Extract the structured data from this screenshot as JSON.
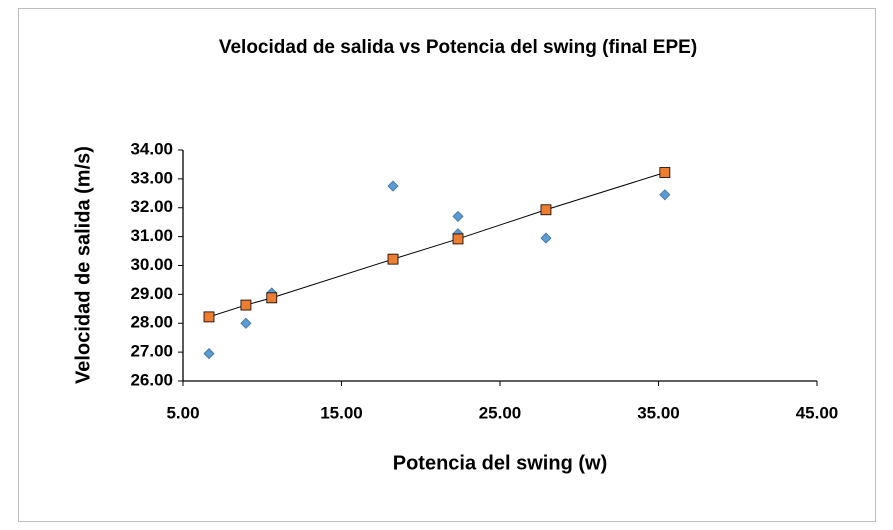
{
  "chart_data": {
    "type": "scatter",
    "title": "Velocidad de salida vs Potencia del swing (final EPE)",
    "x_label": "Potencia del swing (w)",
    "y_label": "Velocidad de salida (m/s)",
    "x": [
      6.64,
      8.97,
      10.6,
      18.25,
      22.35,
      22.35,
      27.9,
      35.4
    ],
    "series": [
      {
        "color": "#5b9bd5",
        "marker": "diamond",
        "x": [
          6.64,
          8.97,
          10.6,
          18.25,
          22.35,
          22.35,
          27.9,
          35.4
        ],
        "values": [
          26.95,
          28.0,
          29.05,
          32.75,
          31.7,
          31.1,
          30.95,
          32.45
        ]
      },
      {
        "color": "#ed7d31",
        "marker": "square",
        "trendline": true,
        "x": [
          6.64,
          8.97,
          10.6,
          18.25,
          22.35,
          27.9,
          35.4
        ],
        "values": [
          28.22,
          28.63,
          28.88,
          30.22,
          30.92,
          31.93,
          33.22
        ]
      }
    ],
    "xlim": [
      5,
      45
    ],
    "xticks": [
      {
        "value": 5,
        "label": "5.00"
      },
      {
        "value": 15,
        "label": "15.00"
      },
      {
        "value": 25,
        "label": "25.00"
      },
      {
        "value": 35,
        "label": "35.00"
      },
      {
        "value": 45,
        "label": "45.00"
      }
    ],
    "ylim": [
      26,
      34
    ],
    "yticks": [
      {
        "value": 26,
        "label": "26.00"
      },
      {
        "value": 27,
        "label": "27.00"
      },
      {
        "value": 28,
        "label": "28.00"
      },
      {
        "value": 29,
        "label": "29.00"
      },
      {
        "value": 30,
        "label": "30.00"
      },
      {
        "value": 31,
        "label": "31.00"
      },
      {
        "value": 32,
        "label": "32.00"
      },
      {
        "value": 33,
        "label": "33.00"
      },
      {
        "value": 34,
        "label": "34.00"
      }
    ],
    "grid": false
  }
}
